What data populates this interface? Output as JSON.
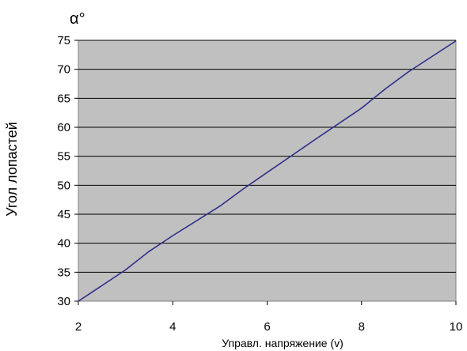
{
  "chart_data": {
    "type": "line",
    "title": "",
    "xlabel": "Управл. напряжение (v)",
    "ylabel": "Угол лопастей",
    "y_unit_label": "α°",
    "xlim": [
      2,
      10
    ],
    "ylim": [
      30,
      75
    ],
    "x_ticks": [
      2,
      4,
      6,
      8,
      10
    ],
    "y_ticks": [
      30,
      35,
      40,
      45,
      50,
      55,
      60,
      65,
      70,
      75
    ],
    "grid": true,
    "legend": "none",
    "colors": {
      "plot_background": "#c0c0c0",
      "line": "#2e2e8a",
      "grid": "#000000"
    },
    "series": [
      {
        "x": [
          2,
          3,
          3.5,
          4,
          5,
          5.5,
          6,
          7,
          8,
          8.5,
          9,
          10
        ],
        "y": [
          30,
          35.4,
          38.6,
          41.3,
          46.4,
          49.4,
          52.2,
          57.8,
          63.3,
          66.6,
          69.6,
          74.9
        ]
      }
    ]
  }
}
